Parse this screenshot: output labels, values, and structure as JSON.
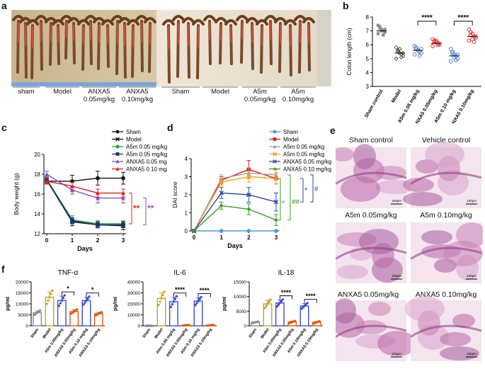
{
  "panels": {
    "a": {
      "letter": "a",
      "labels": [
        "sham",
        "Model",
        "ANXA5 0.05mg/kg",
        "ANXA5 0.10mg/kg",
        "Sham",
        "Model",
        "A5m 0.05mg/kg",
        "A5m 0.10mg/kg"
      ]
    },
    "b": {
      "letter": "b",
      "chart_data": {
        "type": "scatter",
        "ylabel": "Colon length (cm)",
        "ylim": [
          3,
          8
        ],
        "yticks": [
          "3",
          "4",
          "5",
          "6",
          "7",
          "8"
        ],
        "categories": [
          "Sham control",
          "Model",
          "A5m 0.05 mg/kg",
          "ANXA5 0.05mg/kg",
          "A5m 0.10 mg/kg",
          "ANXA5 0.10mg/kg"
        ],
        "colors": [
          "#8a8a8a",
          "#333333",
          "#3a6fd0",
          "#e0201c",
          "#3a6fd0",
          "#e0201c"
        ],
        "means": [
          7.0,
          5.4,
          5.6,
          6.1,
          5.2,
          6.6
        ],
        "points": [
          [
            7.4,
            7.2,
            7.1,
            7.0,
            6.9,
            6.8,
            7.3,
            7.0,
            6.7,
            7.1
          ],
          [
            5.8,
            5.6,
            5.4,
            5.3,
            5.2,
            5.0,
            5.5,
            5.7,
            5.1,
            5.4
          ],
          [
            5.9,
            5.7,
            5.6,
            5.5,
            5.4,
            5.3,
            5.8,
            5.6,
            5.2,
            5.7
          ],
          [
            6.4,
            6.3,
            6.2,
            6.1,
            6.0,
            5.9,
            6.2,
            6.3,
            6.0,
            6.1
          ],
          [
            5.7,
            5.5,
            5.3,
            5.2,
            5.0,
            4.8,
            5.4,
            5.1,
            4.9,
            5.3
          ],
          [
            7.1,
            6.9,
            6.8,
            6.6,
            6.5,
            6.3,
            6.7,
            6.4,
            6.2,
            6.6
          ]
        ],
        "significance": [
          {
            "text": "****",
            "from": 2,
            "to": 3
          },
          {
            "text": "****",
            "from": 4,
            "to": 5
          }
        ]
      }
    },
    "c": {
      "letter": "c",
      "chart_data": {
        "type": "line",
        "xlabel": "Days",
        "ylabel": "Body weight (g)",
        "x": [
          0,
          1,
          2,
          3
        ],
        "ylim": [
          12,
          20
        ],
        "yticks": [
          "12",
          "14",
          "16",
          "18",
          "20"
        ],
        "xticks": [
          "0",
          "1",
          "2",
          "3"
        ],
        "series": [
          {
            "name": "Sham",
            "color": "#111111",
            "marker": "circle",
            "values": [
              17.3,
              17.3,
              17.6,
              17.6
            ],
            "err": [
              0.3,
              0.6,
              0.7,
              0.6
            ]
          },
          {
            "name": "Model",
            "color": "#111111",
            "marker": "x",
            "values": [
              17.4,
              13.2,
              12.9,
              12.8
            ],
            "err": [
              0.3,
              0.4,
              0.3,
              0.4
            ]
          },
          {
            "name": "A5m 0.05 mg/kg",
            "color": "#1f9a3a",
            "marker": "circle",
            "values": [
              17.5,
              13.4,
              13.0,
              13.0
            ],
            "err": [
              0.3,
              0.4,
              0.3,
              0.3
            ]
          },
          {
            "name": "A5m 0.05 mg/kg",
            "color": "#1b2f7a",
            "marker": "square",
            "values": [
              17.4,
              13.3,
              12.9,
              12.9
            ],
            "err": [
              0.3,
              0.3,
              0.3,
              0.3
            ]
          },
          {
            "name": "ANXA5 0.05 mg/kg",
            "color": "#8a4fc8",
            "marker": "triangle",
            "values": [
              18.0,
              16.4,
              15.6,
              15.6
            ],
            "err": [
              0.3,
              0.4,
              0.5,
              0.5
            ]
          },
          {
            "name": "ANXA5 0.10 mg/kg",
            "color": "#e0201c",
            "marker": "triangle",
            "values": [
              17.3,
              16.8,
              16.1,
              16.1
            ],
            "err": [
              0.3,
              0.4,
              0.4,
              0.4
            ]
          }
        ],
        "significance": [
          {
            "text": "**",
            "color": "#e0201c"
          },
          {
            "text": "**",
            "color": "#8a4fc8"
          }
        ]
      }
    },
    "d": {
      "letter": "d",
      "chart_data": {
        "type": "line",
        "xlabel": "Days",
        "ylabel": "DAI score",
        "x": [
          0,
          1,
          2,
          3
        ],
        "ylim": [
          0,
          4
        ],
        "yticks": [
          "0",
          "1",
          "2",
          "3",
          "4"
        ],
        "xticks": [
          "0",
          "1",
          "2",
          "3"
        ],
        "series": [
          {
            "name": "Sham",
            "color": "#4a9bd8",
            "marker": "circle",
            "values": [
              0,
              0,
              0,
              0
            ],
            "err": [
              0,
              0,
              0,
              0
            ]
          },
          {
            "name": "Model",
            "color": "#e0201c",
            "marker": "square",
            "values": [
              0,
              2.8,
              3.4,
              2.9
            ],
            "err": [
              0,
              0.2,
              0.5,
              0.3
            ]
          },
          {
            "name": "A5m 0.05 mg/kg",
            "color": "#a0a0a0",
            "marker": "triangle",
            "values": [
              0,
              2.9,
              3.2,
              3.1
            ],
            "err": [
              0,
              0.2,
              0.3,
              0.3
            ]
          },
          {
            "name": "A5m 0.05 mg/kg",
            "color": "#f0a020",
            "marker": "x",
            "values": [
              0,
              2.7,
              3.0,
              2.9
            ],
            "err": [
              0,
              0.2,
              0.3,
              0.3
            ]
          },
          {
            "name": "ANXA5 0.05 mg/kg",
            "color": "#2a4aa8",
            "marker": "x",
            "values": [
              0,
              2.1,
              2.0,
              1.6
            ],
            "err": [
              0,
              0.3,
              0.4,
              0.5
            ]
          },
          {
            "name": "ANXA5 0.10 mg/kg",
            "color": "#3a9a2a",
            "marker": "diamond",
            "values": [
              0,
              1.4,
              1.2,
              0.6
            ],
            "err": [
              0,
              0.2,
              0.3,
              0.3
            ]
          }
        ],
        "significance": [
          {
            "text": "*",
            "color": "#3a9a2a"
          },
          {
            "text": "##",
            "color": "#3a9a2a"
          },
          {
            "text": "*",
            "color": "#2a4aa8"
          },
          {
            "text": "#",
            "color": "#2a4aa8"
          }
        ]
      }
    },
    "e": {
      "letter": "e",
      "labels": [
        "Sham control",
        "Vehicle control",
        "A5m 0.05mg/kg",
        "A5m 0.10mg/kg",
        "ANXA5 0.05mg/kg",
        "ANXA5 0.10mg/kg"
      ],
      "scale": "100μm"
    },
    "f": {
      "letter": "f",
      "chart_data": [
        {
          "type": "bar",
          "title": "TNF-α",
          "ylabel": "pg/ml",
          "ylim": [
            0,
            20000
          ],
          "yticks": [
            "0",
            "5000",
            "10000",
            "15000",
            "20000"
          ],
          "categories": [
            "Sham",
            "Model",
            "A5m 0.05mg/kg",
            "ANXA5 0.05mg/kg",
            "A5m 0.10 mg/kg",
            "ANXA5 0.10mg/kg"
          ],
          "colors": [
            "#8a8a8a",
            "#c9a227",
            "#3a4fd0",
            "#e05a10",
            "#3a4fd0",
            "#e05a10"
          ],
          "values": [
            6000,
            13000,
            11500,
            6500,
            11500,
            5500
          ],
          "err": [
            800,
            2500,
            2000,
            800,
            1500,
            600
          ],
          "significance": [
            {
              "text": "*",
              "from": 2,
              "to": 3
            },
            {
              "text": "*",
              "from": 4,
              "to": 5
            }
          ]
        },
        {
          "type": "bar",
          "title": "IL-6",
          "ylabel": "pg/ml",
          "ylim": [
            0,
            40000
          ],
          "yticks": [
            "0",
            "10000",
            "20000",
            "30000",
            "40000"
          ],
          "categories": [
            "Sham",
            "Model",
            "A5m 0.05 mg/kg",
            "ANXA5 0.05mg/kg",
            "A5m 0.10 mg/kg",
            "ANXA5 0.10mg/kg"
          ],
          "colors": [
            "#8a8a8a",
            "#c9a227",
            "#3a4fd0",
            "#e05a10",
            "#3a4fd0",
            "#e05a10"
          ],
          "values": [
            0,
            25000,
            22000,
            500,
            22500,
            500
          ],
          "err": [
            0,
            5000,
            4000,
            200,
            3000,
            200
          ],
          "significance": [
            {
              "text": "****",
              "from": 2,
              "to": 3
            },
            {
              "text": "****",
              "from": 4,
              "to": 5
            }
          ]
        },
        {
          "type": "bar",
          "title": "IL-18",
          "ylabel": "pg/ml",
          "ylim": [
            0,
            15000
          ],
          "yticks": [
            "0",
            "5000",
            "10000",
            "15000"
          ],
          "categories": [
            "Sham",
            "Model",
            "A5m 0.05mg/kg",
            "ANXA5 0.05mg/kg",
            "A5m 0.10mg/kg",
            "ANXA5 0.10mg/kg"
          ],
          "colors": [
            "#8a8a8a",
            "#c9a227",
            "#3a4fd0",
            "#e05a10",
            "#3a4fd0",
            "#e05a10"
          ],
          "values": [
            1200,
            7500,
            7800,
            1300,
            6800,
            1200
          ],
          "err": [
            200,
            1200,
            1000,
            300,
            800,
            300
          ],
          "significance": [
            {
              "text": "****",
              "from": 2,
              "to": 3
            },
            {
              "text": "****",
              "from": 4,
              "to": 5
            }
          ]
        }
      ]
    }
  }
}
